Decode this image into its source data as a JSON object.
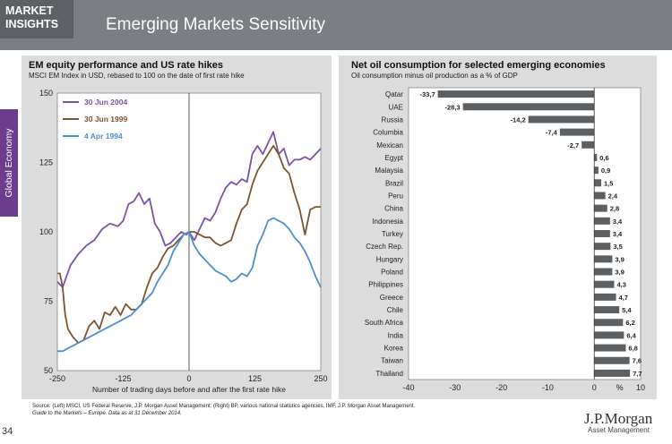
{
  "header": {
    "badge": "MARKET\nINSIGHTS",
    "title": "Emerging Markets Sensitivity"
  },
  "sidebar": {
    "label": "Global Economy"
  },
  "colors": {
    "header": "#7b7f83",
    "badge": "#5d6166",
    "sidebar": "#6a3e8c",
    "panel": "#dcdcdc",
    "bar": "#5c6062",
    "s2004": "#7a52a8",
    "s1999": "#7a5532",
    "s1994": "#4d8ed0"
  },
  "left_chart": {
    "title": "EM equity performance and US rate hikes",
    "subtitle": "MSCI EM Index in USD, rebased to 100 on the date of first rate hike"
  },
  "right_chart": {
    "title": "Net oil consumption for selected emerging economies",
    "subtitle": "Oil consumption minus oil production as a % of GDP"
  },
  "chart_data": [
    {
      "type": "line",
      "xlabel": "Number of trading days before and after the first rate hike",
      "xlim": [
        -250,
        250
      ],
      "ylim": [
        50,
        150
      ],
      "xticks": [
        -250,
        -125,
        0,
        125,
        250
      ],
      "yticks": [
        50,
        75,
        100,
        125,
        150
      ],
      "legend_position": "top-left",
      "series": [
        {
          "name": "30 Jun 2004",
          "x": [
            -250,
            -240,
            -225,
            -210,
            -195,
            -180,
            -165,
            -150,
            -135,
            -125,
            -115,
            -105,
            -95,
            -85,
            -75,
            -65,
            -55,
            -45,
            -35,
            -25,
            -15,
            -5,
            0,
            10,
            20,
            30,
            40,
            50,
            60,
            70,
            80,
            90,
            100,
            110,
            120,
            130,
            140,
            150,
            160,
            170,
            180,
            190,
            200,
            210,
            220,
            230,
            240,
            250
          ],
          "y": [
            82,
            80,
            88,
            92,
            95,
            97,
            101,
            103,
            102,
            104,
            110,
            111,
            114,
            110,
            112,
            103,
            100,
            95,
            96,
            98,
            100,
            99,
            100,
            97,
            101,
            105,
            104,
            107,
            112,
            116,
            118,
            117,
            119,
            118,
            128,
            131,
            128,
            132,
            136,
            128,
            130,
            124,
            126,
            126,
            127,
            126,
            128,
            130
          ]
        },
        {
          "name": "30 Jun 1999",
          "x": [
            -250,
            -245,
            -240,
            -235,
            -230,
            -220,
            -210,
            -200,
            -190,
            -180,
            -170,
            -160,
            -150,
            -140,
            -130,
            -120,
            -110,
            -100,
            -90,
            -80,
            -70,
            -60,
            -50,
            -40,
            -30,
            -20,
            -10,
            0,
            10,
            20,
            30,
            40,
            50,
            60,
            70,
            80,
            90,
            100,
            110,
            120,
            130,
            140,
            150,
            160,
            170,
            180,
            190,
            200,
            210,
            220,
            230,
            240,
            250
          ],
          "y": [
            85,
            85,
            80,
            70,
            65,
            62,
            60,
            61,
            66,
            68,
            65,
            71,
            70,
            73,
            70,
            74,
            72,
            72,
            74,
            80,
            85,
            87,
            91,
            94,
            95,
            97,
            99,
            100,
            100,
            99,
            98,
            98,
            96,
            95,
            96,
            97,
            103,
            108,
            110,
            117,
            122,
            125,
            128,
            131,
            128,
            123,
            121,
            114,
            108,
            99,
            108,
            109,
            109
          ]
        },
        {
          "name": "4 Apr 1994",
          "x": [
            -250,
            -240,
            -230,
            -220,
            -210,
            -200,
            -190,
            -180,
            -170,
            -160,
            -150,
            -140,
            -130,
            -120,
            -110,
            -100,
            -90,
            -80,
            -70,
            -60,
            -50,
            -40,
            -30,
            -20,
            -10,
            0,
            10,
            20,
            30,
            40,
            50,
            60,
            70,
            80,
            90,
            100,
            110,
            120,
            130,
            140,
            150,
            160,
            170,
            180,
            190,
            200,
            210,
            220,
            230,
            240,
            250
          ],
          "y": [
            57,
            57,
            58,
            59,
            60,
            61,
            62,
            63,
            64,
            65,
            66,
            67,
            68,
            69,
            70,
            72,
            74,
            76,
            78,
            82,
            85,
            88,
            93,
            96,
            99,
            100,
            95,
            92,
            90,
            88,
            86,
            85,
            84,
            82,
            83,
            85,
            84,
            87,
            95,
            99,
            104,
            105,
            104,
            103,
            101,
            98,
            96,
            93,
            89,
            84,
            80
          ]
        }
      ]
    },
    {
      "type": "bar",
      "orientation": "horizontal",
      "xlim": [
        -40,
        10
      ],
      "xticks": [
        -40,
        -30,
        -20,
        -10,
        0,
        10
      ],
      "xticklabels": [
        "-40",
        "-30",
        "-20",
        "-10",
        "0",
        "10"
      ],
      "x_unit": "%",
      "categories": [
        "Qatar",
        "UAE",
        "Russia",
        "Columbia",
        "Mexican",
        "Egypt",
        "Malaysia",
        "Brazil",
        "Peru",
        "China",
        "Indonesia",
        "Turkey",
        "Czech Rep.",
        "Hungary",
        "Poland",
        "Philippines",
        "Greece",
        "Chile",
        "South Africa",
        "India",
        "Korea",
        "Taiwan",
        "Thailand"
      ],
      "values": [
        -33.7,
        -28.3,
        -14.2,
        -7.4,
        -2.7,
        0.6,
        0.9,
        1.5,
        2.4,
        2.8,
        3.4,
        3.4,
        3.5,
        3.9,
        3.9,
        4.3,
        4.7,
        5.4,
        6.2,
        6.4,
        6.8,
        7.6,
        7.7
      ],
      "value_labels": [
        "-33,7",
        "-28,3",
        "-14,2",
        "-7,4",
        "-2,7",
        "0,6",
        "0,9",
        "1,5",
        "2,4",
        "2,8",
        "3,4",
        "3,4",
        "3,5",
        "3,9",
        "3,9",
        "4,3",
        "4,7",
        "5,4",
        "6,2",
        "6,4",
        "6,8",
        "7,6",
        "7,7"
      ]
    }
  ],
  "footer": {
    "source1": "Source: (Left) MSCI, US Federal Reserve, J.P. Morgan Asset Management; (Right) BP, various national statistics agencies, IMF, J.P. Morgan Asset Management.",
    "source2": "Guide to the Markets – Europe. Data as at 31 December 2014.",
    "page": "34",
    "brand": "J.P.Morgan",
    "brand_sub": "Asset Management"
  }
}
